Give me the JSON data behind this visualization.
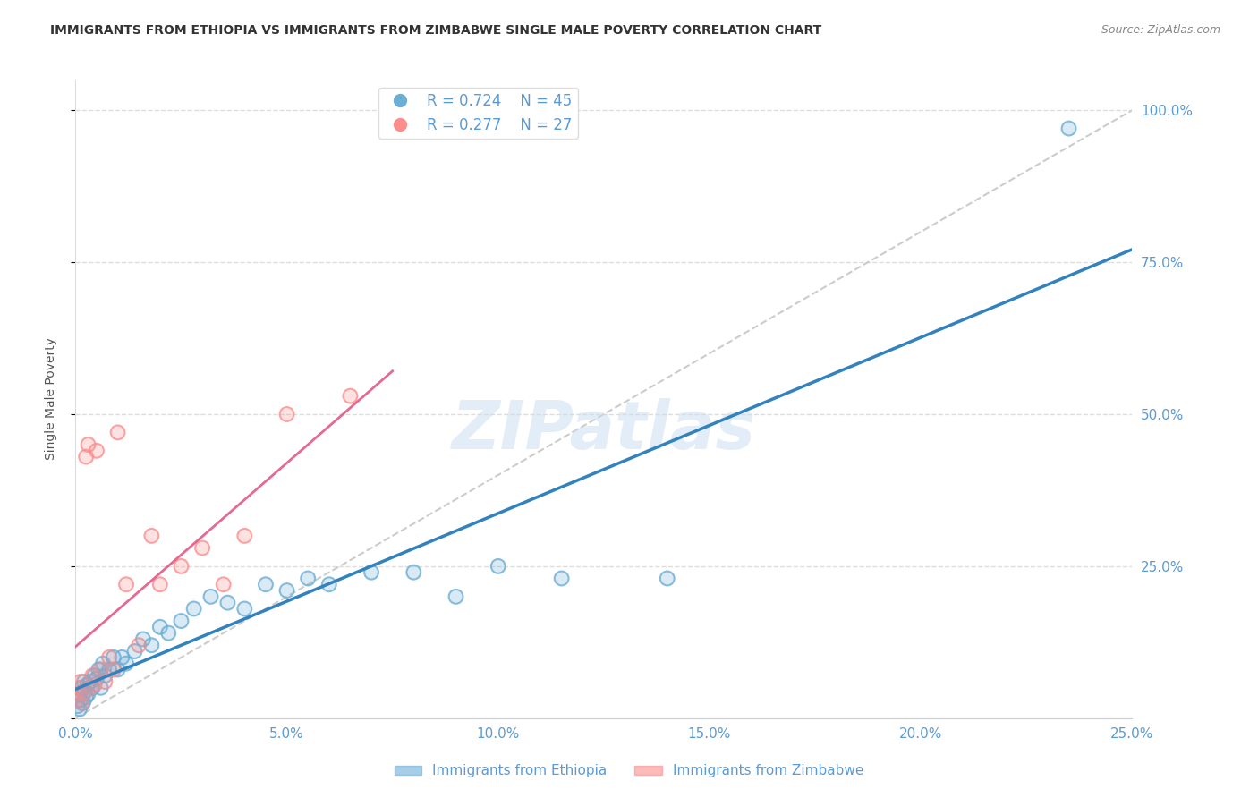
{
  "title": "IMMIGRANTS FROM ETHIOPIA VS IMMIGRANTS FROM ZIMBABWE SINGLE MALE POVERTY CORRELATION CHART",
  "source": "Source: ZipAtlas.com",
  "ylabel": "Single Male Poverty",
  "legend1_r": "0.724",
  "legend1_n": "45",
  "legend2_r": "0.277",
  "legend2_n": "27",
  "legend1_label": "Immigrants from Ethiopia",
  "legend2_label": "Immigrants from Zimbabwe",
  "blue_color": "#6baed6",
  "blue_line_color": "#3182bd",
  "pink_color": "#fc8d8d",
  "pink_line_color": "#e05080",
  "gray_dash_color": "#cccccc",
  "watermark": "ZIPatlas",
  "tick_label_color": "#5b9bd5",
  "background_color": "#ffffff",
  "ethiopia_x": [
    0.05,
    0.08,
    0.1,
    0.12,
    0.15,
    0.18,
    0.2,
    0.22,
    0.25,
    0.28,
    0.3,
    0.35,
    0.4,
    0.45,
    0.5,
    0.55,
    0.6,
    0.65,
    0.7,
    0.8,
    0.9,
    1.0,
    1.1,
    1.2,
    1.4,
    1.6,
    1.8,
    2.0,
    2.2,
    2.5,
    2.8,
    3.2,
    3.6,
    4.0,
    4.5,
    5.0,
    5.5,
    6.0,
    7.0,
    8.0,
    9.0,
    10.0,
    11.5,
    14.0,
    23.5
  ],
  "ethiopia_y": [
    2.0,
    4.0,
    1.5,
    3.0,
    5.0,
    2.5,
    6.0,
    4.5,
    3.5,
    5.5,
    4.0,
    6.0,
    5.0,
    7.0,
    6.5,
    8.0,
    5.0,
    9.0,
    7.0,
    8.0,
    10.0,
    8.0,
    10.0,
    9.0,
    11.0,
    13.0,
    12.0,
    15.0,
    14.0,
    16.0,
    18.0,
    20.0,
    19.0,
    18.0,
    22.0,
    21.0,
    23.0,
    22.0,
    24.0,
    24.0,
    20.0,
    25.0,
    23.0,
    23.0,
    97.0
  ],
  "zimbabwe_x": [
    0.05,
    0.08,
    0.1,
    0.12,
    0.15,
    0.2,
    0.25,
    0.3,
    0.35,
    0.4,
    0.45,
    0.5,
    0.6,
    0.7,
    0.8,
    0.9,
    1.0,
    1.2,
    1.5,
    1.8,
    2.0,
    2.5,
    3.0,
    3.5,
    4.0,
    5.0,
    6.5
  ],
  "zimbabwe_y": [
    3.0,
    5.0,
    4.0,
    6.0,
    2.5,
    4.0,
    43.0,
    45.0,
    5.0,
    7.0,
    5.5,
    44.0,
    8.0,
    6.0,
    10.0,
    8.0,
    47.0,
    22.0,
    12.0,
    30.0,
    22.0,
    25.0,
    28.0,
    22.0,
    30.0,
    50.0,
    53.0
  ]
}
